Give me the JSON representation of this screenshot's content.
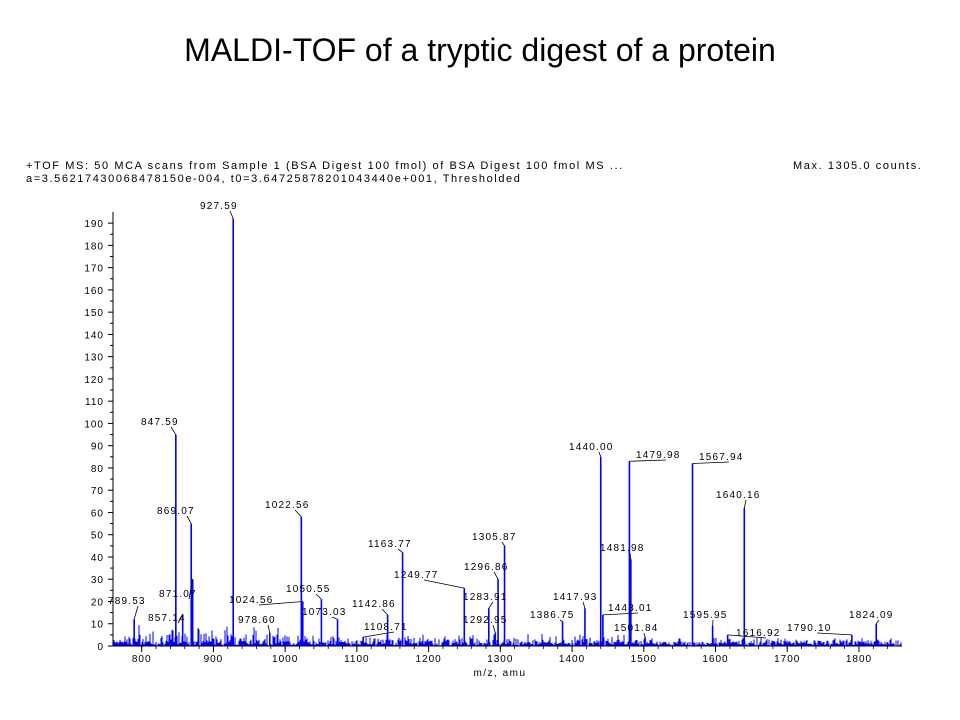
{
  "slide": {
    "title": "MALDI-TOF of a tryptic digest of a protein"
  },
  "header": {
    "line1": "+TOF MS: 50 MCA scans from Sample 1 (BSA Digest 100 fmol) of BSA Digest 100 fmol MS ...",
    "line2": "a=3.56217430068478150e-004, t0=3.64725878201043440e+001, Thresholded",
    "max_counts": "Max. 1305.0 counts."
  },
  "colors": {
    "spectrum": "#0000ff",
    "axis": "#000000",
    "text": "#000000"
  },
  "chart_data": {
    "type": "line",
    "xlabel": "m/z, amu",
    "ylabel": "",
    "xlim": [
      760,
      1860
    ],
    "ylim": [
      0,
      195
    ],
    "x_ticks": [
      800,
      900,
      1000,
      1100,
      1200,
      1300,
      1400,
      1500,
      1600,
      1700,
      1800
    ],
    "y_ticks": [
      0,
      10,
      20,
      30,
      40,
      50,
      60,
      70,
      80,
      90,
      100,
      110,
      120,
      130,
      140,
      150,
      160,
      170,
      180,
      190
    ],
    "peaks": [
      {
        "mz": 789.53,
        "intensity": 12,
        "label": "789.53"
      },
      {
        "mz": 847.59,
        "intensity": 95,
        "label": "847.59"
      },
      {
        "mz": 857.14,
        "intensity": 14,
        "label": "857.14"
      },
      {
        "mz": 869.07,
        "intensity": 55,
        "label": "869.07"
      },
      {
        "mz": 871.07,
        "intensity": 30,
        "label": "871.07"
      },
      {
        "mz": 927.59,
        "intensity": 192,
        "label": "927.59"
      },
      {
        "mz": 978.6,
        "intensity": 6,
        "label": "978.60"
      },
      {
        "mz": 1022.56,
        "intensity": 58,
        "label": "1022.56"
      },
      {
        "mz": 1024.56,
        "intensity": 20,
        "label": "1024.56"
      },
      {
        "mz": 1050.55,
        "intensity": 21,
        "label": "1050.55"
      },
      {
        "mz": 1073.03,
        "intensity": 12,
        "label": "1073.03"
      },
      {
        "mz": 1108.71,
        "intensity": 4,
        "label": "1108.71"
      },
      {
        "mz": 1142.86,
        "intensity": 14,
        "label": "1142.86"
      },
      {
        "mz": 1163.77,
        "intensity": 42,
        "label": "1163.77"
      },
      {
        "mz": 1249.77,
        "intensity": 26,
        "label": "1249.77"
      },
      {
        "mz": 1283.91,
        "intensity": 17,
        "label": "1283.91"
      },
      {
        "mz": 1292.95,
        "intensity": 6,
        "label": "1292.95"
      },
      {
        "mz": 1296.86,
        "intensity": 30,
        "label": "1296.86"
      },
      {
        "mz": 1305.87,
        "intensity": 45,
        "label": "1305.87"
      },
      {
        "mz": 1386.75,
        "intensity": 11,
        "label": "1386.75"
      },
      {
        "mz": 1417.93,
        "intensity": 17,
        "label": "1417.93"
      },
      {
        "mz": 1440.0,
        "intensity": 85,
        "label": "1440.00"
      },
      {
        "mz": 1443.01,
        "intensity": 14,
        "label": "1443.01"
      },
      {
        "mz": 1479.98,
        "intensity": 83,
        "label": "1479.98"
      },
      {
        "mz": 1481.98,
        "intensity": 39,
        "label": "1481.98"
      },
      {
        "mz": 1501.84,
        "intensity": 4,
        "label": "1501.84"
      },
      {
        "mz": 1567.94,
        "intensity": 82,
        "label": "1567.94"
      },
      {
        "mz": 1595.95,
        "intensity": 9,
        "label": "1595.95"
      },
      {
        "mz": 1616.92,
        "intensity": 5,
        "label": "1616.92"
      },
      {
        "mz": 1640.16,
        "intensity": 62,
        "label": "1640.16"
      },
      {
        "mz": 1790.1,
        "intensity": 5,
        "label": "1790.10"
      },
      {
        "mz": 1824.09,
        "intensity": 10,
        "label": "1824.09"
      }
    ]
  }
}
